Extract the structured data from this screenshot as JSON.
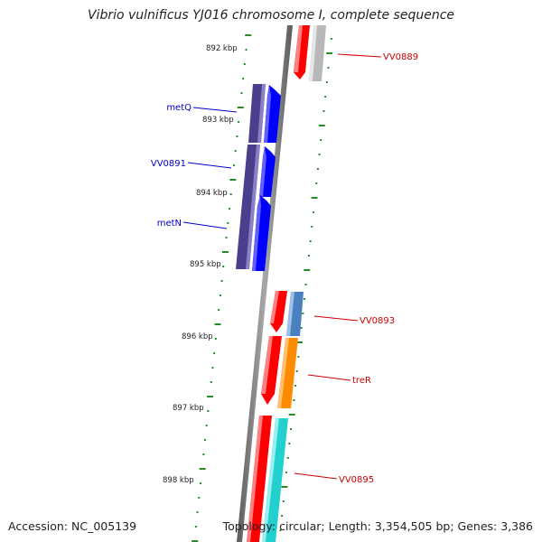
{
  "title": "Vibrio vulnificus YJ016 chromosome I, complete sequence",
  "accession": "Accession: NC_005139",
  "topology": "Topology: circular; Length: 3,354,505 bp; Genes: 3,386",
  "scale_labels": [
    "892 kbp",
    "893 kbp",
    "894 kbp",
    "895 kbp",
    "896 kbp",
    "897 kbp",
    "898 kbp"
  ],
  "genes": [
    {
      "name": "VV0889",
      "strand": "forward",
      "color": "#cc0000"
    },
    {
      "name": "metQ",
      "strand": "reverse",
      "color": "#0000cc"
    },
    {
      "name": "VV0891",
      "strand": "reverse",
      "color": "#0000cc"
    },
    {
      "name": "metN",
      "strand": "reverse",
      "color": "#0000cc"
    },
    {
      "name": "VV0893",
      "strand": "forward",
      "color": "#cc0000"
    },
    {
      "name": "treR",
      "strand": "forward",
      "color": "#cc0000"
    },
    {
      "name": "VV0895",
      "strand": "forward",
      "color": "#cc0000"
    }
  ],
  "colors": {
    "backbone": "#808080",
    "tick": "#2a8a2a",
    "forward_gene": "#ff0000",
    "reverse_gene": "#0000ff",
    "reverse_cog": "#4a3f8c",
    "cog_gray": "#b8b8b8",
    "cog_steelblue": "#4a80c0",
    "cog_orange": "#ff8c00",
    "cog_cyan": "#22d0d0"
  }
}
